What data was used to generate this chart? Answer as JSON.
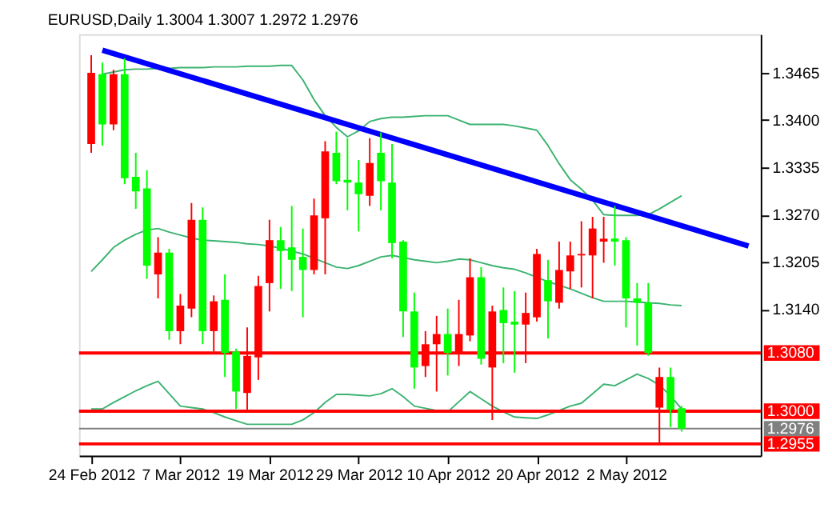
{
  "chart_data": {
    "type": "candlestick",
    "title": "EURUSD,Daily  1.3004 1.3007 1.2972 1.2976",
    "categories": [
      "24 Feb 2012",
      null,
      null,
      null,
      null,
      null,
      null,
      null,
      "7 Mar 2012",
      null,
      null,
      null,
      null,
      null,
      null,
      null,
      "19 Mar 2012",
      null,
      null,
      null,
      null,
      null,
      null,
      null,
      "29 Mar 2012",
      null,
      null,
      null,
      null,
      null,
      null,
      null,
      "10 Apr 2012",
      null,
      null,
      null,
      null,
      null,
      null,
      null,
      "20 Apr 2012",
      null,
      null,
      null,
      null,
      null,
      null,
      null,
      "2 May 2012",
      null,
      null,
      null,
      null,
      null,
      null,
      null,
      null,
      null,
      null,
      null
    ],
    "ohlc": [
      [
        1.3367,
        1.3489,
        1.3355,
        1.3465
      ],
      [
        1.3463,
        1.3479,
        1.3365,
        1.3394
      ],
      [
        1.3394,
        1.3469,
        1.3386,
        1.3463
      ],
      [
        1.3463,
        1.3485,
        1.3312,
        1.332
      ],
      [
        1.3322,
        1.3355,
        1.3278,
        1.3302
      ],
      [
        1.3306,
        1.3331,
        1.3182,
        1.32
      ],
      [
        1.3188,
        1.3239,
        1.3155,
        1.3218
      ],
      [
        1.3218,
        1.3223,
        1.3098,
        1.311
      ],
      [
        1.311,
        1.3161,
        1.3092,
        1.3145
      ],
      [
        1.3141,
        1.3286,
        1.3129,
        1.3263
      ],
      [
        1.3263,
        1.328,
        1.3092,
        1.311
      ],
      [
        1.311,
        1.3159,
        1.3082,
        1.3151
      ],
      [
        1.3153,
        1.3188,
        1.3047,
        1.308
      ],
      [
        1.3082,
        1.3086,
        1.3003,
        1.3027
      ],
      [
        1.3025,
        1.3115,
        1.2998,
        1.3076
      ],
      [
        1.3074,
        1.3186,
        1.3043,
        1.3172
      ],
      [
        1.3176,
        1.3263,
        1.3137,
        1.3235
      ],
      [
        1.3235,
        1.3253,
        1.3168,
        1.322
      ],
      [
        1.3225,
        1.3282,
        1.3165,
        1.3208
      ],
      [
        1.3212,
        1.3251,
        1.3129,
        1.3194
      ],
      [
        1.3194,
        1.3292,
        1.3188,
        1.3269
      ],
      [
        1.3265,
        1.3371,
        1.3188,
        1.3357
      ],
      [
        1.3355,
        1.3384,
        1.3312,
        1.3316
      ],
      [
        1.3318,
        1.3375,
        1.3276,
        1.3314
      ],
      [
        1.3314,
        1.3345,
        1.3247,
        1.3298
      ],
      [
        1.3296,
        1.3375,
        1.3282,
        1.3341
      ],
      [
        1.3355,
        1.3383,
        1.3276,
        1.3316
      ],
      [
        1.3314,
        1.3367,
        1.321,
        1.3231
      ],
      [
        1.3233,
        1.3235,
        1.3102,
        1.3137
      ],
      [
        1.3137,
        1.3163,
        1.3031,
        1.306
      ],
      [
        1.3062,
        1.311,
        1.3047,
        1.3092
      ],
      [
        1.3092,
        1.3131,
        1.3027,
        1.3106
      ],
      [
        1.3106,
        1.3141,
        1.3049,
        1.308
      ],
      [
        1.308,
        1.3153,
        1.3062,
        1.3106
      ],
      [
        1.3104,
        1.321,
        1.3096,
        1.3184
      ],
      [
        1.3184,
        1.3198,
        1.3064,
        1.3072
      ],
      [
        1.306,
        1.3145,
        1.2988,
        1.3137
      ],
      [
        1.3139,
        1.317,
        1.3066,
        1.3121
      ],
      [
        1.3123,
        1.3165,
        1.3053,
        1.3119
      ],
      [
        1.3119,
        1.3163,
        1.3066,
        1.3135
      ],
      [
        1.3129,
        1.3223,
        1.3123,
        1.3216
      ],
      [
        1.318,
        1.3208,
        1.31,
        1.3151
      ],
      [
        1.3149,
        1.3233,
        1.3141,
        1.3194
      ],
      [
        1.3192,
        1.3233,
        1.3168,
        1.3214
      ],
      [
        1.3214,
        1.3261,
        1.317,
        1.3216
      ],
      [
        1.3214,
        1.3267,
        1.3155,
        1.3251
      ],
      [
        1.3233,
        1.3267,
        1.3204,
        1.3237
      ],
      [
        1.3237,
        1.3282,
        1.32,
        1.3233
      ],
      [
        1.3235,
        1.3239,
        1.3115,
        1.3155
      ],
      [
        1.3155,
        1.3176,
        1.309,
        1.3149
      ],
      [
        1.3149,
        1.3176,
        1.3076,
        1.308
      ],
      [
        1.3005,
        1.306,
        1.2955,
        1.3047
      ],
      [
        1.3047,
        1.306,
        1.2978,
        1.3002
      ],
      [
        1.3004,
        1.3007,
        1.2972,
        1.2976
      ],
      null,
      null,
      null,
      null,
      null,
      null
    ],
    "colors": [
      "#ff0000",
      "#00ff00",
      "#ff0000",
      "#00ff00",
      "#00ff00",
      "#00ff00",
      "#ff0000",
      "#00ff00",
      "#ff0000",
      "#ff0000",
      "#00ff00",
      "#ff0000",
      "#00ff00",
      "#00ff00",
      "#ff0000",
      "#ff0000",
      "#ff0000",
      "#00ff00",
      "#00ff00",
      "#00ff00",
      "#ff0000",
      "#ff0000",
      "#00ff00",
      "#00ff00",
      "#00ff00",
      "#ff0000",
      "#00ff00",
      "#00ff00",
      "#00ff00",
      "#00ff00",
      "#ff0000",
      "#ff0000",
      "#00ff00",
      "#ff0000",
      "#ff0000",
      "#00ff00",
      "#ff0000",
      "#00ff00",
      "#00ff00",
      "#ff0000",
      "#ff0000",
      "#00ff00",
      "#ff0000",
      "#ff0000",
      "#ff0000",
      "#ff0000",
      "#ff0000",
      "#00ff00",
      "#00ff00",
      "#00ff00",
      "#00ff00",
      "#ff0000",
      "#00ff00",
      "#00ff00",
      null,
      null,
      null,
      null,
      null,
      null
    ],
    "series": [
      {
        "type": "line",
        "color": "#3cb371",
        "values": [
          null,
          1.3463,
          1.3466,
          1.3469,
          1.347,
          1.347,
          1.3471,
          1.3471,
          1.3472,
          1.3472,
          1.3472,
          1.3473,
          1.3473,
          1.3473,
          1.3474,
          1.3474,
          1.3474,
          1.3475,
          1.3475,
          1.3455,
          1.3428,
          1.3406,
          1.339,
          1.3377,
          1.3385,
          1.3398,
          1.3402,
          1.3404,
          1.3404,
          1.3405,
          1.3406,
          1.3406,
          1.3406,
          1.34,
          1.3394,
          1.3394,
          1.3394,
          1.3394,
          1.3392,
          1.3389,
          1.3386,
          1.3365,
          1.334,
          1.3318,
          1.3305,
          1.329,
          1.327,
          1.3269,
          1.3269,
          1.3269,
          1.327,
          1.3278,
          1.3287,
          1.3296,
          null,
          null,
          null,
          null,
          null,
          null
        ]
      },
      {
        "type": "line",
        "color": "#3cb371",
        "values": [
          1.3192,
          1.3208,
          1.3225,
          1.3235,
          1.3243,
          1.3249,
          1.3251,
          1.3246,
          1.3242,
          1.3238,
          1.3235,
          1.3234,
          1.3233,
          1.3232,
          1.323,
          1.3229,
          1.3227,
          1.3224,
          1.322,
          1.3216,
          1.321,
          1.3204,
          1.3198,
          1.3196,
          1.32,
          1.3206,
          1.3212,
          1.3214,
          1.3211,
          1.3208,
          1.3206,
          1.3204,
          1.3206,
          1.3209,
          1.3208,
          1.3204,
          1.32,
          1.3197,
          1.3195,
          1.319,
          1.3184,
          1.3178,
          1.3173,
          1.3168,
          1.3162,
          1.3156,
          1.3151,
          1.3151,
          1.3151,
          1.315,
          1.3149,
          1.3148,
          1.3146,
          1.3145,
          null,
          null,
          null,
          null,
          null,
          null
        ]
      },
      {
        "type": "line",
        "color": "#3cb371",
        "values": [
          1.3003,
          1.3003,
          1.3012,
          1.302,
          1.3028,
          1.3035,
          1.3041,
          1.3024,
          1.3007,
          1.3005,
          1.3003,
          1.2998,
          1.2992,
          1.2987,
          1.2982,
          1.2982,
          1.2982,
          1.2982,
          1.2982,
          1.2988,
          1.2998,
          1.3012,
          1.3023,
          1.3023,
          1.3022,
          1.3021,
          1.3024,
          1.3031,
          1.302,
          1.3007,
          1.3004,
          1.3001,
          1.2999,
          1.3013,
          1.3027,
          1.3017,
          1.3007,
          1.2999,
          1.2992,
          1.2991,
          1.299,
          1.2995,
          1.3001,
          1.3007,
          1.3011,
          1.3024,
          1.3037,
          1.3035,
          1.3043,
          1.3051,
          1.3045,
          1.3036,
          1.3021,
          1.3003,
          null,
          null,
          null,
          null,
          null,
          null
        ]
      },
      {
        "type": "line",
        "color": "#0000ff",
        "values": [
          null,
          1.3496,
          null,
          null,
          null,
          null,
          null,
          null,
          null,
          null,
          null,
          null,
          null,
          null,
          null,
          null,
          null,
          null,
          null,
          null,
          null,
          null,
          null,
          null,
          null,
          null,
          null,
          null,
          null,
          null,
          null,
          null,
          null,
          null,
          null,
          null,
          null,
          null,
          null,
          null,
          null,
          null,
          null,
          null,
          null,
          null,
          null,
          null,
          null,
          null,
          null,
          null,
          null,
          null,
          null,
          null,
          null,
          null,
          null,
          1.3227
        ]
      }
    ],
    "ref_lines": [
      {
        "axis": "y",
        "value": 1.308,
        "label": "1.3080",
        "color": "#ff0000"
      },
      {
        "axis": "y",
        "value": 1.3,
        "label": "1.3000",
        "color": "#ff0000"
      },
      {
        "axis": "y",
        "value": 1.2976,
        "label": "1.2976",
        "color": "#808080"
      },
      {
        "axis": "y",
        "value": 1.2955,
        "label": "1.2955",
        "color": "#ff0000"
      }
    ],
    "ylim": [
      1.2939,
      1.3518
    ],
    "yticks": [
      {
        "value": 1.3465,
        "label": "1.3465"
      },
      {
        "value": 1.34,
        "label": "1.3400"
      },
      {
        "value": 1.3335,
        "label": "1.3335"
      },
      {
        "value": 1.327,
        "label": "1.3270"
      },
      {
        "value": 1.3205,
        "label": "1.3205"
      },
      {
        "value": 1.314,
        "label": "1.3140"
      }
    ],
    "grid": false
  }
}
